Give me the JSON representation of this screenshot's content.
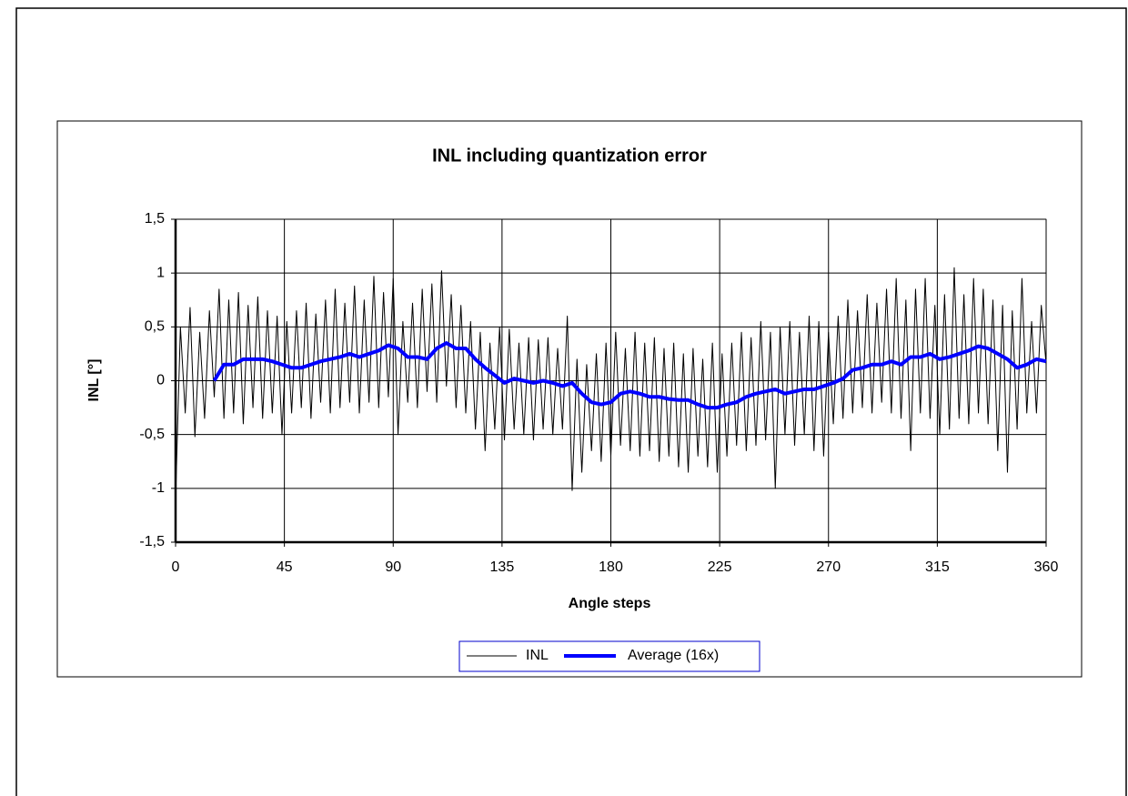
{
  "chart_data": {
    "type": "line",
    "title": "INL including quantization error",
    "x_label": "Angle steps",
    "y_label": "INL [°]",
    "xlim": [
      0,
      360
    ],
    "xticks": [
      0,
      45,
      90,
      135,
      180,
      225,
      270,
      315,
      360
    ],
    "ylim": [
      -1.5,
      1.5
    ],
    "yticks": [
      {
        "value": -1.5,
        "label": "-1,5"
      },
      -1,
      {
        "value": -0.5,
        "label": "-0,5"
      },
      0,
      {
        "value": 0.5,
        "label": "0,5"
      },
      1,
      {
        "value": 1.5,
        "label": "1,5"
      }
    ],
    "grid": true,
    "legend": "bottom",
    "series": [
      {
        "name": "INL",
        "color": "#000000",
        "width": 1,
        "x": [
          0,
          2,
          4,
          6,
          8,
          10,
          12,
          14,
          16,
          18,
          20,
          22,
          24,
          26,
          28,
          30,
          32,
          34,
          36,
          38,
          40,
          42,
          44,
          46,
          48,
          50,
          52,
          54,
          56,
          58,
          60,
          62,
          64,
          66,
          68,
          70,
          72,
          74,
          76,
          78,
          80,
          82,
          84,
          86,
          88,
          90,
          92,
          94,
          96,
          98,
          100,
          102,
          104,
          106,
          108,
          110,
          112,
          114,
          116,
          118,
          120,
          122,
          124,
          126,
          128,
          130,
          132,
          134,
          136,
          138,
          140,
          142,
          144,
          146,
          148,
          150,
          152,
          154,
          156,
          158,
          160,
          162,
          164,
          166,
          168,
          170,
          172,
          174,
          176,
          178,
          180,
          182,
          184,
          186,
          188,
          190,
          192,
          194,
          196,
          198,
          200,
          202,
          204,
          206,
          208,
          210,
          212,
          214,
          216,
          218,
          220,
          222,
          224,
          226,
          228,
          230,
          232,
          234,
          236,
          238,
          240,
          242,
          244,
          246,
          248,
          250,
          252,
          254,
          256,
          258,
          260,
          262,
          264,
          266,
          268,
          270,
          272,
          274,
          276,
          278,
          280,
          282,
          284,
          286,
          288,
          290,
          292,
          294,
          296,
          298,
          300,
          302,
          304,
          306,
          308,
          310,
          312,
          314,
          316,
          318,
          320,
          322,
          324,
          326,
          328,
          330,
          332,
          334,
          336,
          338,
          340,
          342,
          344,
          346,
          348,
          350,
          352,
          354,
          356,
          358,
          360
        ],
        "values": [
          -1.1,
          0.5,
          -0.3,
          0.68,
          -0.52,
          0.45,
          -0.35,
          0.65,
          -0.15,
          0.85,
          -0.35,
          0.75,
          -0.3,
          0.82,
          -0.4,
          0.7,
          -0.25,
          0.78,
          -0.35,
          0.65,
          -0.3,
          0.6,
          -0.5,
          0.55,
          -0.3,
          0.65,
          -0.25,
          0.72,
          -0.35,
          0.62,
          -0.2,
          0.75,
          -0.3,
          0.85,
          -0.25,
          0.72,
          -0.2,
          0.88,
          -0.3,
          0.75,
          -0.2,
          0.97,
          -0.25,
          0.82,
          -0.15,
          0.95,
          -0.5,
          0.55,
          -0.2,
          0.72,
          -0.25,
          0.85,
          -0.1,
          0.9,
          -0.2,
          1.02,
          -0.05,
          0.8,
          -0.25,
          0.7,
          -0.3,
          0.55,
          -0.45,
          0.45,
          -0.65,
          0.35,
          -0.45,
          0.5,
          -0.55,
          0.48,
          -0.45,
          0.35,
          -0.5,
          0.4,
          -0.55,
          0.38,
          -0.45,
          0.4,
          -0.5,
          0.3,
          -0.45,
          0.6,
          -1.02,
          0.2,
          -0.85,
          0.15,
          -0.65,
          0.25,
          -0.75,
          0.35,
          -0.7,
          0.45,
          -0.6,
          0.3,
          -0.65,
          0.45,
          -0.7,
          0.35,
          -0.65,
          0.4,
          -0.75,
          0.3,
          -0.7,
          0.35,
          -0.8,
          0.25,
          -0.85,
          0.3,
          -0.7,
          0.2,
          -0.8,
          0.35,
          -0.85,
          0.25,
          -0.7,
          0.35,
          -0.6,
          0.45,
          -0.65,
          0.4,
          -0.6,
          0.55,
          -0.55,
          0.45,
          -1.0,
          0.5,
          -0.5,
          0.55,
          -0.6,
          0.45,
          -0.5,
          0.6,
          -0.65,
          0.55,
          -0.7,
          0.45,
          -0.4,
          0.6,
          -0.35,
          0.75,
          -0.3,
          0.65,
          -0.25,
          0.8,
          -0.3,
          0.72,
          -0.2,
          0.85,
          -0.3,
          0.95,
          -0.35,
          0.75,
          -0.65,
          0.85,
          -0.3,
          0.95,
          -0.35,
          0.7,
          -0.5,
          0.8,
          -0.45,
          1.05,
          -0.35,
          0.8,
          -0.4,
          0.95,
          -0.3,
          0.85,
          -0.4,
          0.75,
          -0.65,
          0.7,
          -0.85,
          0.65,
          -0.45,
          0.95,
          -0.3,
          0.55,
          -0.3,
          0.7,
          0.15
        ]
      },
      {
        "name": "Average (16x)",
        "color": "#0000ff",
        "width": 4,
        "x": [
          16,
          20,
          24,
          28,
          32,
          36,
          40,
          44,
          48,
          52,
          56,
          60,
          64,
          68,
          72,
          76,
          80,
          84,
          88,
          92,
          96,
          100,
          104,
          108,
          112,
          116,
          120,
          124,
          128,
          132,
          136,
          140,
          144,
          148,
          152,
          156,
          160,
          164,
          168,
          172,
          176,
          180,
          184,
          188,
          192,
          196,
          200,
          204,
          208,
          212,
          216,
          220,
          224,
          228,
          232,
          236,
          240,
          244,
          248,
          252,
          256,
          260,
          264,
          268,
          272,
          276,
          280,
          284,
          288,
          292,
          296,
          300,
          304,
          308,
          312,
          316,
          320,
          324,
          328,
          332,
          336,
          340,
          344,
          348,
          352,
          356,
          360
        ],
        "values": [
          0.0,
          0.15,
          0.15,
          0.2,
          0.2,
          0.2,
          0.18,
          0.15,
          0.12,
          0.12,
          0.15,
          0.18,
          0.2,
          0.22,
          0.25,
          0.22,
          0.25,
          0.28,
          0.33,
          0.3,
          0.22,
          0.22,
          0.2,
          0.3,
          0.35,
          0.3,
          0.3,
          0.2,
          0.12,
          0.05,
          -0.02,
          0.02,
          0.0,
          -0.02,
          0.0,
          -0.02,
          -0.05,
          -0.02,
          -0.12,
          -0.2,
          -0.22,
          -0.2,
          -0.12,
          -0.1,
          -0.12,
          -0.15,
          -0.15,
          -0.17,
          -0.18,
          -0.18,
          -0.22,
          -0.25,
          -0.25,
          -0.22,
          -0.2,
          -0.15,
          -0.12,
          -0.1,
          -0.08,
          -0.12,
          -0.1,
          -0.08,
          -0.08,
          -0.05,
          -0.02,
          0.02,
          0.1,
          0.12,
          0.15,
          0.15,
          0.18,
          0.15,
          0.22,
          0.22,
          0.25,
          0.2,
          0.22,
          0.25,
          0.28,
          0.32,
          0.3,
          0.25,
          0.2,
          0.12,
          0.15,
          0.2,
          0.18
        ]
      }
    ]
  }
}
